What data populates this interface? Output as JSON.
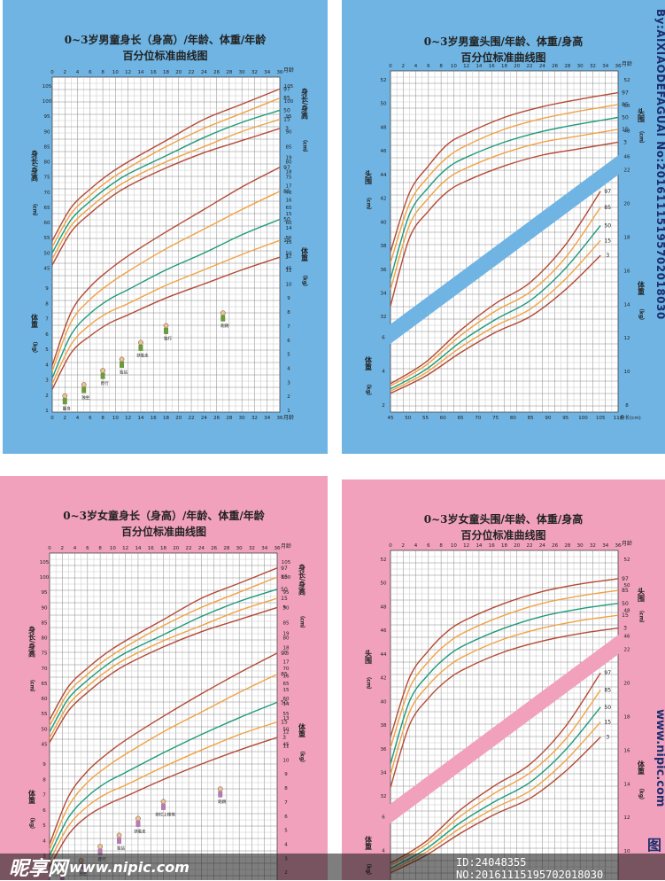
{
  "colors": {
    "boy_bg": "#6fb4e3",
    "girl_bg": "#f1a1bc",
    "p97": "#b44a35",
    "p85": "#f0a244",
    "p50": "#1e9a7a",
    "p15": "#f0a244",
    "p3": "#b44a35"
  },
  "panels": {
    "tl": {
      "title1": "0~3岁男童身长（身高）/年龄、体重/年龄",
      "title2": "百分位标准曲线图"
    },
    "tr": {
      "title1": "0~3岁男童头围/年龄、体重/身高",
      "title2": "百分位标准曲线图"
    },
    "bl": {
      "title1": "0~3岁女童身长（身高）/年龄、体重/年龄",
      "title2": "百分位标准曲线图"
    },
    "br": {
      "title1": "0~3岁女童头围/年龄、体重/身高",
      "title2": "百分位标准曲线图"
    }
  },
  "labels": {
    "months": "月龄",
    "length_unit": "身长/身高",
    "cm": "（cm）",
    "weight": "体重",
    "kg": "（kg）",
    "head": "头围",
    "height_cm": "身长(cm)"
  },
  "milestones_boy": [
    "翻身",
    "独坐",
    "爬行",
    "独站",
    "扶着走",
    "独行",
    "跑跳"
  ],
  "milestones_girl": [
    "翻身",
    "独坐",
    "爬行",
    "独站",
    "扶着走",
    "扶栏上楼梯",
    "跑跳"
  ],
  "watermarks": {
    "side_top": "By:AIXIAODEFAGUAI No:20161115195702018030",
    "side_bottom": "www.nipic.com",
    "corner": "图",
    "logo": "昵享网",
    "url": "www.nipic.com",
    "id_line": "ID:24048355 NO:20161115195702018030"
  },
  "chart_data": [
    {
      "type": "line",
      "title": "0~3岁男童身长（身高）/年龄、体重/年龄 百分位标准曲线图",
      "xlabel": "月龄",
      "x": [
        0,
        3,
        6,
        9,
        12,
        18,
        24,
        30,
        36
      ],
      "xlim": [
        0,
        36
      ],
      "length_ylim": [
        45,
        105
      ],
      "weight_ylim": [
        1,
        19
      ],
      "length_series": [
        {
          "name": "97",
          "values": [
            54,
            65,
            71,
            76,
            80,
            87,
            94,
            99,
            104
          ]
        },
        {
          "name": "85",
          "values": [
            52,
            63,
            69,
            74,
            78,
            85,
            91,
            96,
            101
          ]
        },
        {
          "name": "50",
          "values": [
            50,
            61,
            67,
            72,
            76,
            82,
            88,
            93,
            97
          ]
        },
        {
          "name": "15",
          "values": [
            48,
            59,
            65,
            70,
            74,
            80,
            85,
            90,
            94
          ]
        },
        {
          "name": "3",
          "values": [
            46,
            57,
            63,
            68,
            72,
            78,
            83,
            87,
            91
          ]
        }
      ],
      "weight_series": [
        {
          "name": "97",
          "values": [
            4.2,
            8.0,
            9.8,
            11.0,
            12.0,
            13.7,
            15.3,
            16.9,
            18.3
          ]
        },
        {
          "name": "85",
          "values": [
            3.8,
            7.3,
            8.9,
            10.0,
            10.9,
            12.5,
            13.9,
            15.3,
            16.6
          ]
        },
        {
          "name": "50",
          "values": [
            3.3,
            6.4,
            7.9,
            8.9,
            9.6,
            11.0,
            12.2,
            13.5,
            14.6
          ]
        },
        {
          "name": "15",
          "values": [
            2.9,
            5.7,
            7.1,
            8.0,
            8.6,
            9.9,
            11.0,
            12.1,
            13.1
          ]
        },
        {
          "name": "3",
          "values": [
            2.5,
            5.1,
            6.3,
            7.2,
            7.8,
            9.0,
            10.0,
            11.0,
            11.9
          ]
        }
      ]
    },
    {
      "type": "line",
      "title": "0~3岁男童头围/年龄、体重/身高 百分位标准曲线图",
      "xlabel": "月龄",
      "head_x": [
        0,
        3,
        6,
        9,
        12,
        18,
        24,
        30,
        36
      ],
      "head_ylim": [
        31,
        53
      ],
      "head_series": [
        {
          "name": "97",
          "values": [
            37.0,
            42.5,
            45.0,
            47.0,
            48.0,
            49.5,
            50.5,
            51.2,
            51.8
          ]
        },
        {
          "name": "85",
          "values": [
            36.0,
            41.5,
            44.0,
            45.8,
            46.9,
            48.4,
            49.4,
            50.1,
            50.7
          ]
        },
        {
          "name": "50",
          "values": [
            34.5,
            40.5,
            43.0,
            44.8,
            45.8,
            47.2,
            48.2,
            48.9,
            49.5
          ]
        },
        {
          "name": "15",
          "values": [
            33.5,
            39.5,
            42.0,
            43.8,
            44.8,
            46.2,
            47.2,
            47.8,
            48.4
          ]
        },
        {
          "name": "3",
          "values": [
            32.0,
            38.3,
            40.8,
            42.6,
            43.6,
            45.0,
            46.0,
            46.6,
            47.2
          ]
        }
      ],
      "wfh_x": [
        45,
        55,
        65,
        75,
        85,
        95,
        105
      ],
      "wfh_xlabel": "身长(cm)",
      "wfh_series": [
        {
          "name": "97",
          "values": [
            3.0,
            5.0,
            8.0,
            10.5,
            12.5,
            16.0,
            21.0
          ]
        },
        {
          "name": "85",
          "values": [
            2.8,
            4.7,
            7.5,
            9.8,
            11.6,
            14.8,
            19.5
          ]
        },
        {
          "name": "50",
          "values": [
            2.5,
            4.3,
            6.9,
            9.0,
            10.8,
            13.8,
            17.8
          ]
        },
        {
          "name": "15",
          "values": [
            2.3,
            4.0,
            6.4,
            8.4,
            10.0,
            12.8,
            16.4
          ]
        },
        {
          "name": "3",
          "values": [
            2.1,
            3.7,
            5.9,
            7.8,
            9.3,
            11.8,
            15.0
          ]
        }
      ]
    },
    {
      "type": "line",
      "title": "0~3岁女童身长（身高）/年龄、体重/年龄 百分位标准曲线图",
      "xlabel": "月龄",
      "x": [
        0,
        3,
        6,
        9,
        12,
        18,
        24,
        30,
        36
      ],
      "xlim": [
        0,
        36
      ],
      "length_ylim": [
        45,
        105
      ],
      "weight_ylim": [
        1,
        19
      ],
      "length_series": [
        {
          "name": "97",
          "values": [
            53,
            64,
            70,
            75,
            79,
            86,
            93,
            98,
            103
          ]
        },
        {
          "name": "85",
          "values": [
            51,
            62,
            68,
            73,
            77,
            84,
            90,
            95,
            100
          ]
        },
        {
          "name": "50",
          "values": [
            49,
            60,
            66,
            71,
            75,
            81,
            87,
            92,
            96
          ]
        },
        {
          "name": "15",
          "values": [
            47,
            58,
            64,
            69,
            73,
            79,
            84,
            89,
            93
          ]
        },
        {
          "name": "3",
          "values": [
            45.5,
            56,
            62,
            67,
            71,
            77,
            82,
            86,
            90
          ]
        }
      ],
      "weight_series": [
        {
          "name": "97",
          "values": [
            4.0,
            7.4,
            9.2,
            10.4,
            11.4,
            13.1,
            14.7,
            16.2,
            17.6
          ]
        },
        {
          "name": "85",
          "values": [
            3.6,
            6.7,
            8.4,
            9.5,
            10.4,
            12.0,
            13.4,
            14.8,
            16.1
          ]
        },
        {
          "name": "50",
          "values": [
            3.2,
            5.9,
            7.4,
            8.4,
            9.1,
            10.5,
            11.8,
            13.0,
            14.1
          ]
        },
        {
          "name": "15",
          "values": [
            2.8,
            5.3,
            6.7,
            7.6,
            8.2,
            9.5,
            10.7,
            11.8,
            12.7
          ]
        },
        {
          "name": "3",
          "values": [
            2.4,
            4.7,
            6.0,
            6.8,
            7.4,
            8.6,
            9.7,
            10.7,
            11.6
          ]
        }
      ]
    },
    {
      "type": "line",
      "title": "0~3岁女童头围/年龄、体重/身高 百分位标准曲线图",
      "xlabel": "月龄",
      "head_x": [
        0,
        3,
        6,
        9,
        12,
        18,
        24,
        30,
        36
      ],
      "head_ylim": [
        31,
        53
      ],
      "head_series": [
        {
          "name": "97",
          "values": [
            36.5,
            42.0,
            44.5,
            46.3,
            47.4,
            48.9,
            50.0,
            50.7,
            51.2
          ]
        },
        {
          "name": "85",
          "values": [
            35.5,
            41.0,
            43.5,
            45.2,
            46.3,
            47.8,
            48.9,
            49.6,
            50.1
          ]
        },
        {
          "name": "50",
          "values": [
            34.0,
            39.8,
            42.3,
            44.0,
            45.1,
            46.6,
            47.7,
            48.4,
            48.9
          ]
        },
        {
          "name": "15",
          "values": [
            33.0,
            38.8,
            41.3,
            43.0,
            44.1,
            45.6,
            46.6,
            47.3,
            47.8
          ]
        },
        {
          "name": "3",
          "values": [
            31.8,
            37.6,
            40.1,
            41.8,
            42.9,
            44.4,
            45.4,
            46.1,
            46.6
          ]
        }
      ],
      "wfh_x": [
        45,
        55,
        65,
        75,
        85,
        95,
        105
      ],
      "wfh_xlabel": "身长(cm)",
      "wfh_series": [
        {
          "name": "97",
          "values": [
            3.0,
            5.0,
            8.0,
            10.3,
            12.3,
            15.8,
            20.8
          ]
        },
        {
          "name": "85",
          "values": [
            2.8,
            4.7,
            7.4,
            9.6,
            11.5,
            14.6,
            19.2
          ]
        },
        {
          "name": "50",
          "values": [
            2.5,
            4.3,
            6.8,
            8.8,
            10.6,
            13.6,
            17.6
          ]
        },
        {
          "name": "15",
          "values": [
            2.3,
            4.0,
            6.3,
            8.2,
            9.8,
            12.6,
            16.2
          ]
        },
        {
          "name": "3",
          "values": [
            2.1,
            3.7,
            5.8,
            7.6,
            9.1,
            11.6,
            14.8
          ]
        }
      ]
    }
  ]
}
